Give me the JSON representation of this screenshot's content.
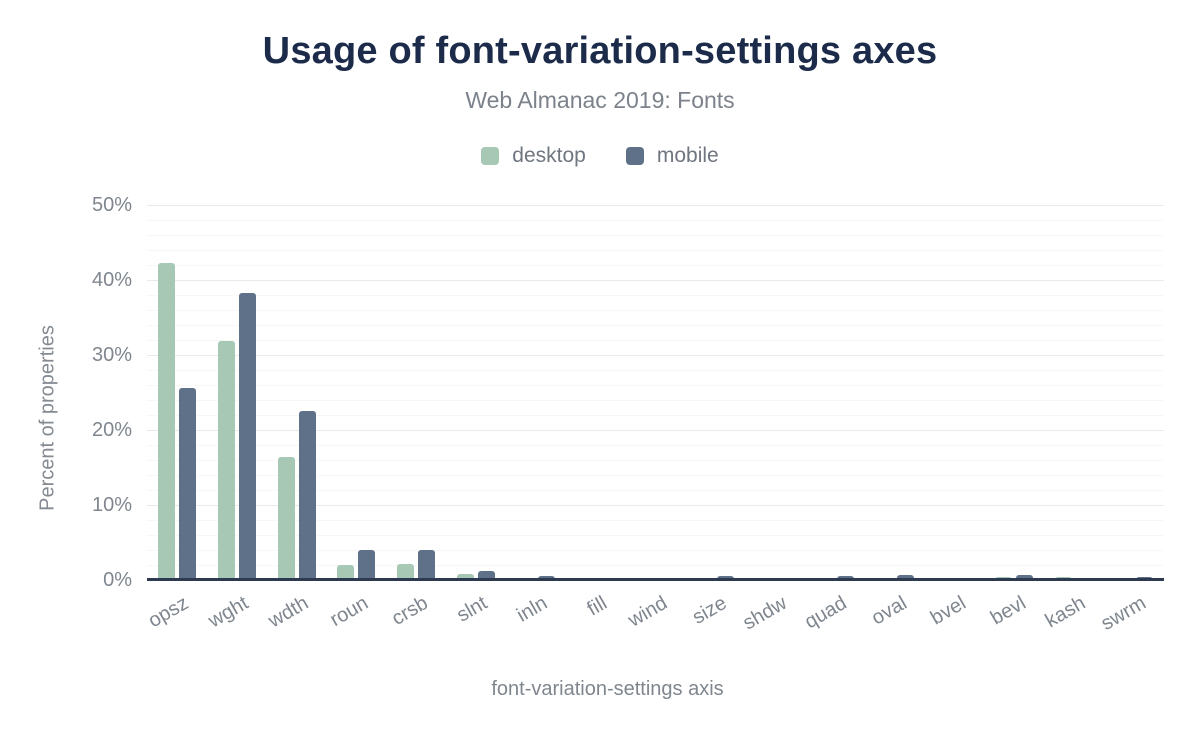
{
  "chart_data": {
    "type": "bar",
    "title": "Usage of font-variation-settings axes",
    "subtitle": "Web Almanac 2019: Fonts",
    "xlabel": "font-variation-settings axis",
    "ylabel": "Percent of properties",
    "ylim": [
      0,
      50
    ],
    "y_ticks": [
      {
        "value": 0,
        "label": "0%"
      },
      {
        "value": 10,
        "label": "10%"
      },
      {
        "value": 20,
        "label": "20%"
      },
      {
        "value": 30,
        "label": "30%"
      },
      {
        "value": 40,
        "label": "40%"
      },
      {
        "value": 50,
        "label": "50%"
      }
    ],
    "grid": "horizontal: major lines every 10%, faint minor lines every 2%",
    "legend_position": "top-center",
    "categories": [
      "opsz",
      "wght",
      "wdth",
      "roun",
      "crsb",
      "slnt",
      "inln",
      "fill",
      "wind",
      "size",
      "shdw",
      "quad",
      "oval",
      "bvel",
      "bevl",
      "kash",
      "swrm"
    ],
    "series": [
      {
        "name": "desktop",
        "color": "#a6c8b5",
        "values": [
          42.3,
          31.9,
          16.4,
          2.0,
          2.1,
          0.8,
          0.3,
          0.3,
          0.3,
          0.3,
          0.3,
          0.3,
          0.3,
          0.3,
          0.4,
          0.4,
          0.1
        ]
      },
      {
        "name": "mobile",
        "color": "#5e7189",
        "values": [
          25.6,
          38.3,
          22.6,
          4.0,
          4.0,
          1.2,
          0.6,
          0.0,
          0.0,
          0.6,
          0.0,
          0.6,
          0.7,
          0.0,
          0.7,
          0.0,
          0.4
        ]
      }
    ],
    "colors": {
      "title": "#1c2b4a",
      "axis_line": "#2e3a50",
      "label_gray": "#7f868e",
      "major_gridline": "#eaeaea",
      "minor_gridline": "#f7f7f7",
      "background": "#ffffff"
    }
  }
}
